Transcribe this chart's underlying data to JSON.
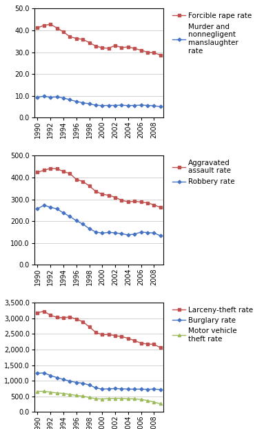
{
  "years": [
    1990,
    1991,
    1992,
    1993,
    1994,
    1995,
    1996,
    1997,
    1998,
    1999,
    2000,
    2001,
    2002,
    2003,
    2004,
    2005,
    2006,
    2007,
    2008,
    2009
  ],
  "forcible_rape": [
    41.2,
    42.3,
    42.8,
    41.1,
    39.3,
    37.1,
    36.3,
    35.9,
    34.4,
    32.8,
    32.0,
    31.8,
    33.1,
    32.1,
    32.4,
    31.7,
    30.9,
    30.0,
    29.7,
    28.7
  ],
  "murder": [
    9.4,
    9.8,
    9.3,
    9.5,
    9.0,
    8.2,
    7.4,
    6.8,
    6.3,
    5.7,
    5.5,
    5.6,
    5.6,
    5.7,
    5.5,
    5.6,
    5.7,
    5.6,
    5.4,
    5.0
  ],
  "aggravated_assault": [
    424.1,
    433.4,
    441.8,
    440.3,
    427.6,
    418.3,
    391.0,
    382.1,
    361.4,
    336.1,
    323.6,
    318.5,
    309.5,
    295.4,
    288.6,
    290.8,
    287.5,
    283.8,
    274.6,
    262.8
  ],
  "robbery": [
    257.0,
    272.7,
    263.6,
    255.9,
    237.7,
    220.9,
    201.9,
    186.2,
    165.5,
    150.1,
    145.0,
    148.5,
    146.1,
    142.2,
    136.7,
    140.7,
    149.4,
    147.6,
    145.3,
    133.0
  ],
  "larceny_theft": [
    3185.1,
    3228.8,
    3103.0,
    3032.4,
    3026.7,
    3043.8,
    2980.3,
    2891.8,
    2729.5,
    2550.7,
    2477.3,
    2485.7,
    2445.8,
    2416.5,
    2362.3,
    2286.3,
    2206.8,
    2177.8,
    2167.0,
    2060.9
  ],
  "burglary": [
    1235.9,
    1252.0,
    1168.2,
    1099.2,
    1042.0,
    987.6,
    945.0,
    918.8,
    862.0,
    770.4,
    728.8,
    741.8,
    747.0,
    741.0,
    730.3,
    726.7,
    729.4,
    722.5,
    730.8,
    716.3
  ],
  "motor_vehicle_theft": [
    657.8,
    658.9,
    631.5,
    606.1,
    591.3,
    560.4,
    525.9,
    505.7,
    459.9,
    422.5,
    412.2,
    430.5,
    432.9,
    433.7,
    421.3,
    416.7,
    398.4,
    363.6,
    314.7,
    258.8
  ],
  "red_color": "#C0504D",
  "blue_color": "#4472C4",
  "green_color": "#9BBB59",
  "panel1_ylim": [
    0,
    50
  ],
  "panel1_yticks": [
    0.0,
    10.0,
    20.0,
    30.0,
    40.0,
    50.0
  ],
  "panel2_ylim": [
    0,
    500
  ],
  "panel2_yticks": [
    0.0,
    100.0,
    200.0,
    300.0,
    400.0,
    500.0
  ],
  "panel3_ylim": [
    0,
    3500
  ],
  "panel3_yticks": [
    0.0,
    500.0,
    1000.0,
    1500.0,
    2000.0,
    2500.0,
    3000.0,
    3500.0
  ],
  "xtick_years": [
    1990,
    1992,
    1994,
    1996,
    1998,
    2000,
    2002,
    2004,
    2006,
    2008
  ],
  "legend_fontsize": 7.5,
  "tick_fontsize": 7,
  "label1_forcible_rape": "Forcible rape rate",
  "label1_murder": "Murder and\nnonnegligent\nmanslaughter\nrate",
  "label2_aggravated": "Aggravated\nassault rate",
  "label2_robbery": "Robbery rate",
  "label3_larceny": "Larceny-theft rate",
  "label3_burglary": "Burglary rate",
  "label3_mv_theft": "Motor vehicle\ntheft rate"
}
